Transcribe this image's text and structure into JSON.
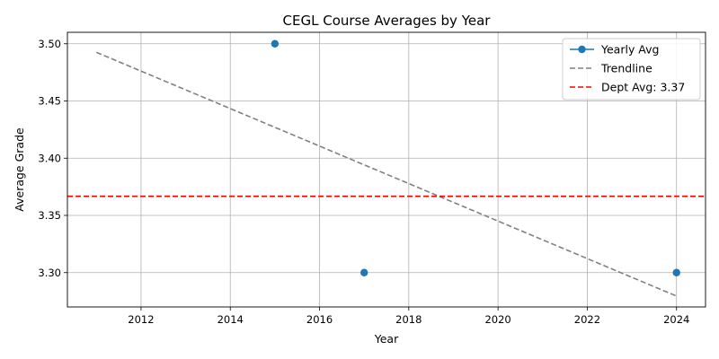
{
  "chart_data": {
    "type": "line",
    "title": "CEGL Course Averages by Year",
    "xlabel": "Year",
    "ylabel": "Average Grade",
    "xlim": [
      2010.35,
      2024.65
    ],
    "ylim": [
      3.27,
      3.51
    ],
    "xticks": [
      2012,
      2014,
      2016,
      2018,
      2020,
      2022,
      2024
    ],
    "yticks": [
      3.3,
      3.35,
      3.4,
      3.45,
      3.5
    ],
    "grid": true,
    "legend_position": "top-right",
    "series": [
      {
        "name": "Yearly Avg",
        "kind": "line-markers",
        "color": "#1f77b4",
        "x": [
          2015,
          2017,
          2024
        ],
        "y": [
          3.5,
          3.3,
          3.3
        ]
      },
      {
        "name": "Trendline",
        "kind": "dashed-line",
        "color": "#808080",
        "x": [
          2011,
          2024
        ],
        "y": [
          3.4925,
          3.2795
        ]
      },
      {
        "name": "Dept Avg: 3.37",
        "kind": "horizontal-dashed",
        "color": "#ff0000",
        "y": 3.3667
      }
    ]
  }
}
